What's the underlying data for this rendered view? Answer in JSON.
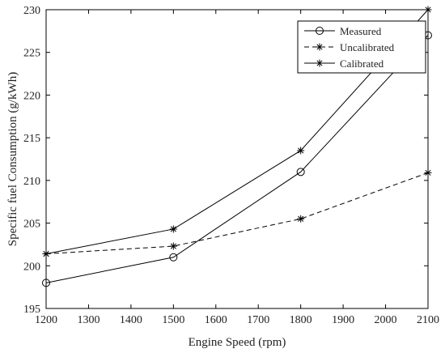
{
  "chart_data": {
    "type": "line",
    "title": "",
    "xlabel": "Engine Speed (rpm)",
    "ylabel": "Specific fuel Consumption (g/kWh)",
    "xlim": [
      1200,
      2100
    ],
    "ylim": [
      195,
      230
    ],
    "xticks": [
      1200,
      1300,
      1400,
      1500,
      1600,
      1700,
      1800,
      1900,
      2000,
      2100
    ],
    "yticks": [
      195,
      200,
      205,
      210,
      215,
      220,
      225,
      230
    ],
    "grid": false,
    "legend_position": "top-right",
    "series": [
      {
        "name": "Measured",
        "style": "solid",
        "marker": "circle",
        "color": "#000000",
        "x": [
          1200,
          1500,
          1800,
          2100
        ],
        "y": [
          198.0,
          201.0,
          211.0,
          227.0
        ]
      },
      {
        "name": "Uncalibrated",
        "style": "dashed",
        "marker": "asterisk",
        "color": "#000000",
        "x": [
          1200,
          1500,
          1800,
          2100
        ],
        "y": [
          201.4,
          202.3,
          205.5,
          210.9
        ]
      },
      {
        "name": "Calibrated",
        "style": "solid",
        "marker": "asterisk",
        "color": "#000000",
        "x": [
          1200,
          1500,
          1800,
          2100
        ],
        "y": [
          201.4,
          204.3,
          213.5,
          230.0
        ]
      }
    ]
  }
}
